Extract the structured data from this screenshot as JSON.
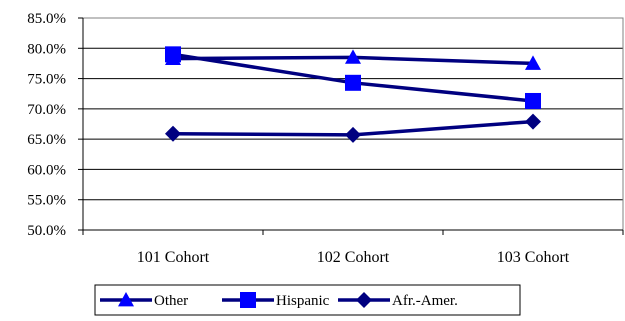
{
  "chart_data": {
    "type": "line",
    "categories": [
      "101 Cohort",
      "102 Cohort",
      "103 Cohort"
    ],
    "series": [
      {
        "name": "Other",
        "values": [
          78.3,
          78.5,
          77.5
        ],
        "marker": "triangle",
        "color": "#0000ff"
      },
      {
        "name": "Hispanic",
        "values": [
          79.0,
          74.3,
          71.3
        ],
        "marker": "square",
        "color": "#0000ff"
      },
      {
        "name": "Afr.-Amer.",
        "values": [
          65.9,
          65.7,
          67.9
        ],
        "marker": "diamond",
        "color": "#000080"
      }
    ],
    "line_color": "#000080",
    "ylim": [
      50.0,
      85.0
    ],
    "yticks": [
      "50.0%",
      "55.0%",
      "60.0%",
      "65.0%",
      "70.0%",
      "75.0%",
      "80.0%",
      "85.0%"
    ],
    "ytick_values": [
      50,
      55,
      60,
      65,
      70,
      75,
      80,
      85
    ],
    "grid": true,
    "legend_position": "bottom"
  }
}
